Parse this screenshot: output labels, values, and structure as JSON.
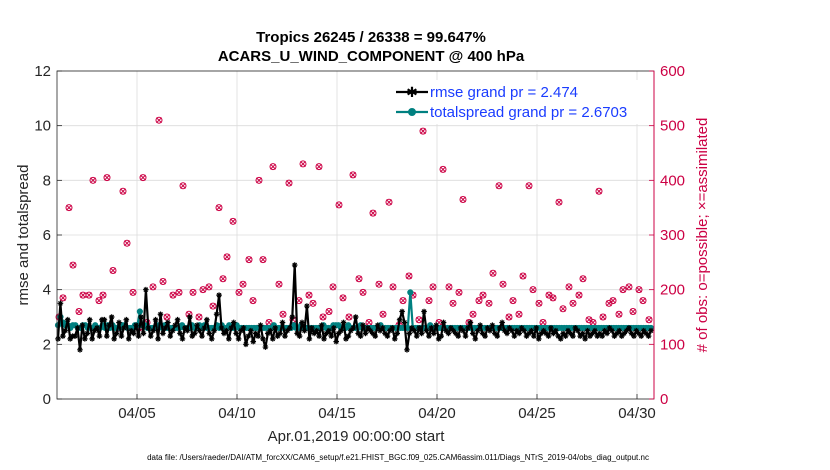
{
  "chart_data": {
    "type": "line",
    "title": "Tropics 26245 / 26338 = 99.647%",
    "subtitle": "ACARS_U_WIND_COMPONENT @ 400 hPa",
    "xlabel": "Apr.01,2019 00:00:00 start",
    "ylabel": "rmse and totalspread",
    "y2label": "# of obs: o=possible; ×=assimilated",
    "footnote": "data file: /Users/raeder/DAI/ATM_forcXX/CAM6_setup/f.e21.FHIST_BGC.f09_025.CAM6assim.011/Diags_NTrS_2019-04/obs_diag_output.nc",
    "xlim": [
      1.0,
      30.85
    ],
    "ylim": [
      0,
      12
    ],
    "y2lim": [
      0,
      600
    ],
    "xticks": [
      5,
      10,
      15,
      20,
      25,
      30
    ],
    "xtick_labels": [
      "04/05",
      "04/10",
      "04/15",
      "04/20",
      "04/25",
      "04/30"
    ],
    "yticks": [
      0,
      2,
      4,
      6,
      8,
      10,
      12
    ],
    "y2ticks": [
      0,
      100,
      200,
      300,
      400,
      500,
      600
    ],
    "grid": true,
    "legend_position": "top-right",
    "series": [
      {
        "name": "rmse grand pr = 2.474",
        "color": "#000000",
        "marker": "star",
        "values": [
          2.2,
          3.5,
          2.3,
          2.5,
          2.9,
          2.2,
          2.3,
          2.3,
          2.6,
          1.8,
          2.7,
          2.2,
          2.4,
          2.9,
          2.2,
          2.5,
          2.6,
          2.3,
          2.9,
          2.9,
          2.3,
          2.7,
          3.0,
          2.2,
          2.4,
          2.8,
          2.3,
          2.6,
          2.9,
          2.2,
          2.5,
          2.4,
          2.7,
          2.3,
          3.0,
          2.4,
          4.0,
          2.6,
          2.3,
          2.5,
          2.9,
          2.2,
          3.1,
          2.4,
          2.6,
          2.8,
          2.3,
          2.5,
          2.7,
          2.9,
          2.4,
          2.2,
          2.6,
          2.5,
          3.0,
          2.3,
          2.4,
          2.7,
          2.5,
          2.3,
          2.6,
          2.9,
          2.4,
          2.2,
          2.5,
          3.1,
          3.8,
          2.6,
          2.4,
          2.5,
          2.2,
          2.6,
          2.8,
          2.4,
          2.2,
          2.5,
          2.6,
          2.0,
          2.3,
          2.5,
          2.1,
          2.4,
          2.3,
          2.7,
          2.2,
          1.9,
          2.4,
          2.5,
          2.2,
          2.6,
          2.3,
          2.4,
          2.8,
          2.3,
          2.5,
          2.6,
          3.0,
          4.9,
          2.4,
          2.3,
          2.8,
          2.5,
          3.4,
          2.2,
          2.6,
          2.4,
          2.5,
          2.3,
          2.7,
          2.2,
          2.4,
          2.5,
          2.3,
          2.6,
          2.1,
          2.4,
          2.5,
          2.8,
          2.2,
          2.3,
          2.5,
          2.6,
          3.0,
          2.4,
          2.3,
          2.7,
          2.4,
          2.6,
          2.5,
          2.4,
          2.3,
          2.7,
          2.5,
          2.6,
          2.4,
          2.3,
          2.5,
          2.6,
          2.2,
          2.4,
          2.9,
          3.2,
          2.8,
          1.8,
          2.4,
          2.6,
          2.5,
          2.3,
          2.6,
          2.4,
          3.2,
          2.5,
          2.3,
          2.6,
          2.4,
          2.7,
          2.2,
          2.3,
          2.8,
          2.5,
          2.4,
          2.6,
          2.5,
          2.4,
          2.3,
          2.6,
          2.5,
          2.3,
          2.6,
          2.8,
          2.4,
          2.2,
          2.5,
          2.7,
          2.4,
          2.3,
          2.6,
          2.5,
          2.7,
          2.4,
          2.3,
          2.6,
          2.8,
          2.5,
          2.4,
          2.6,
          2.5,
          2.3,
          2.5,
          2.4,
          2.6,
          2.5,
          2.3,
          2.4,
          2.5,
          2.3,
          2.6,
          2.2,
          2.4,
          2.5,
          2.4,
          2.3,
          2.6,
          2.4,
          2.5,
          2.3,
          2.2,
          2.4,
          2.3,
          2.5,
          2.4,
          2.3,
          2.6,
          2.5,
          2.3,
          2.4,
          2.2,
          2.5,
          2.3,
          2.4,
          2.5,
          2.3,
          2.4,
          2.3,
          2.5,
          2.4,
          2.6,
          2.5,
          2.3,
          2.4,
          2.5,
          2.3,
          2.4,
          2.5,
          2.6,
          2.4,
          2.3,
          2.5,
          2.4,
          2.3,
          2.5,
          2.4,
          2.3,
          2.5
        ]
      },
      {
        "name": "totalspread grand pr = 2.6703",
        "color": "#008080",
        "marker": "circle",
        "values": [
          2.7,
          3.0,
          2.8,
          2.7,
          2.7,
          2.6,
          2.7,
          2.7,
          2.6,
          2.6,
          2.7,
          2.7,
          2.6,
          2.6,
          2.6,
          2.7,
          2.6,
          2.6,
          2.7,
          2.6,
          2.7,
          2.6,
          2.7,
          2.6,
          2.6,
          2.6,
          2.7,
          2.7,
          2.6,
          2.6,
          2.6,
          2.7,
          2.7,
          3.2,
          2.7,
          2.7,
          2.6,
          2.6,
          2.6,
          2.6,
          2.7,
          2.7,
          2.6,
          2.7,
          2.6,
          2.6,
          2.6,
          2.6,
          2.6,
          2.6,
          2.7,
          2.6,
          2.6,
          2.6,
          2.7,
          2.6,
          2.6,
          2.7,
          2.6,
          2.7,
          2.6,
          2.6,
          2.6,
          2.6,
          2.7,
          2.6,
          2.7,
          2.6,
          2.6,
          2.7,
          2.6,
          2.6,
          2.7,
          2.6,
          2.6,
          2.6,
          2.6,
          2.6,
          2.6,
          2.6,
          2.6,
          2.6,
          2.6,
          2.6,
          2.6,
          2.6,
          2.6,
          2.7,
          2.6,
          2.6,
          2.6,
          2.6,
          2.6,
          2.6,
          2.6,
          2.7,
          2.6,
          2.6,
          2.7,
          2.6,
          2.6,
          2.6,
          2.6,
          2.6,
          2.6,
          2.6,
          2.6,
          2.7,
          2.6,
          2.6,
          2.6,
          2.7,
          2.7,
          2.7,
          2.6,
          2.6,
          2.6,
          2.7,
          2.6,
          2.6,
          2.6,
          2.6,
          2.7,
          2.6,
          2.6,
          2.6,
          2.6,
          2.6,
          2.6,
          2.6,
          2.7,
          2.6,
          2.6,
          2.6,
          2.6,
          2.6,
          2.6,
          2.6,
          2.6,
          2.6,
          2.6,
          2.6,
          3.9,
          2.6,
          2.6,
          2.6,
          2.6,
          2.6,
          2.6,
          2.6,
          2.7,
          2.6,
          2.6,
          2.6,
          2.6,
          2.6,
          2.6,
          2.6,
          2.6,
          2.6,
          2.6,
          2.6,
          2.6,
          2.6,
          2.6,
          2.6,
          2.6,
          2.6,
          2.6,
          2.6,
          2.6,
          2.6,
          2.6,
          2.6,
          2.6,
          2.6,
          2.6,
          2.6,
          2.6,
          2.6,
          2.6,
          2.6,
          2.6,
          2.6,
          2.6,
          2.6,
          2.6,
          2.6,
          2.6,
          2.6,
          2.6,
          2.6,
          2.6,
          2.6,
          2.6,
          2.6,
          2.6,
          2.6,
          2.6,
          2.6,
          2.6,
          2.6,
          2.6,
          2.6,
          2.6,
          2.6,
          2.6,
          2.6,
          2.6,
          2.6,
          2.6,
          2.6,
          2.6,
          2.6,
          2.6,
          2.6,
          2.6,
          2.6,
          2.6,
          2.6,
          2.6,
          2.6,
          2.6,
          2.6,
          2.6,
          2.6,
          2.6,
          2.6,
          2.6,
          2.6,
          2.6,
          2.6,
          2.6,
          2.6,
          2.6,
          2.6,
          2.6,
          2.6,
          2.6,
          2.6
        ]
      }
    ],
    "obs_series": {
      "name": "# of obs",
      "color": "#cc0044",
      "x": [
        1.1,
        1.3,
        1.6,
        1.8,
        2.1,
        2.3,
        2.6,
        2.8,
        3.1,
        3.3,
        3.5,
        3.8,
        4.1,
        4.3,
        4.5,
        4.8,
        5.1,
        5.3,
        5.5,
        5.8,
        6.1,
        6.3,
        6.5,
        6.8,
        7.1,
        7.3,
        7.6,
        7.8,
        8.1,
        8.3,
        8.6,
        8.8,
        9.1,
        9.3,
        9.5,
        9.8,
        10.1,
        10.3,
        10.6,
        10.8,
        11.1,
        11.3,
        11.6,
        11.8,
        12.1,
        12.3,
        12.6,
        12.8,
        13.1,
        13.3,
        13.6,
        13.8,
        14.1,
        14.3,
        14.6,
        14.8,
        15.1,
        15.3,
        15.6,
        15.8,
        16.1,
        16.3,
        16.6,
        16.8,
        17.1,
        17.3,
        17.6,
        17.8,
        18.1,
        18.3,
        18.6,
        18.8,
        19.1,
        19.3,
        19.6,
        19.8,
        20.1,
        20.3,
        20.6,
        20.8,
        21.1,
        21.3,
        21.6,
        21.8,
        22.1,
        22.3,
        22.6,
        22.8,
        23.1,
        23.3,
        23.6,
        23.8,
        24.1,
        24.3,
        24.6,
        24.8,
        25.1,
        25.3,
        25.6,
        25.8,
        26.1,
        26.3,
        26.6,
        26.8,
        27.1,
        27.3,
        27.6,
        27.8,
        28.1,
        28.3,
        28.6,
        28.8,
        29.1,
        29.3,
        29.6,
        29.8,
        30.1,
        30.3,
        30.6
      ],
      "possible": [
        150,
        185,
        350,
        245,
        160,
        190,
        190,
        400,
        180,
        190,
        405,
        235,
        130,
        380,
        285,
        195,
        130,
        405,
        140,
        205,
        510,
        215,
        150,
        190,
        195,
        390,
        155,
        195,
        150,
        200,
        205,
        170,
        350,
        220,
        260,
        325,
        195,
        210,
        255,
        180,
        400,
        255,
        140,
        425,
        210,
        155,
        395,
        145,
        180,
        430,
        190,
        175,
        425,
        150,
        160,
        205,
        355,
        185,
        150,
        410,
        220,
        195,
        140,
        340,
        210,
        155,
        360,
        205,
        135,
        180,
        225,
        190,
        145,
        490,
        180,
        205,
        140,
        420,
        205,
        175,
        195,
        365,
        140,
        155,
        180,
        190,
        175,
        230,
        390,
        210,
        150,
        180,
        155,
        225,
        390,
        200,
        175,
        140,
        190,
        185,
        360,
        165,
        205,
        175,
        190,
        220,
        145,
        140,
        380,
        150,
        175,
        180,
        155,
        200,
        205,
        160,
        200,
        180,
        145
      ],
      "assimilated": [
        150,
        185,
        350,
        245,
        160,
        190,
        190,
        400,
        180,
        190,
        405,
        235,
        130,
        380,
        285,
        195,
        130,
        405,
        140,
        205,
        510,
        215,
        150,
        190,
        195,
        390,
        155,
        195,
        150,
        200,
        205,
        170,
        350,
        220,
        260,
        325,
        195,
        210,
        255,
        180,
        400,
        255,
        140,
        425,
        210,
        155,
        395,
        145,
        180,
        430,
        190,
        175,
        425,
        150,
        160,
        205,
        355,
        185,
        150,
        410,
        220,
        195,
        140,
        340,
        210,
        155,
        360,
        205,
        135,
        180,
        225,
        190,
        145,
        490,
        180,
        205,
        140,
        420,
        205,
        175,
        195,
        365,
        140,
        155,
        180,
        190,
        175,
        230,
        390,
        210,
        150,
        180,
        155,
        225,
        390,
        200,
        175,
        140,
        190,
        185,
        360,
        165,
        205,
        175,
        190,
        220,
        145,
        140,
        380,
        150,
        175,
        180,
        155,
        200,
        205,
        160,
        200,
        180,
        145
      ]
    }
  }
}
